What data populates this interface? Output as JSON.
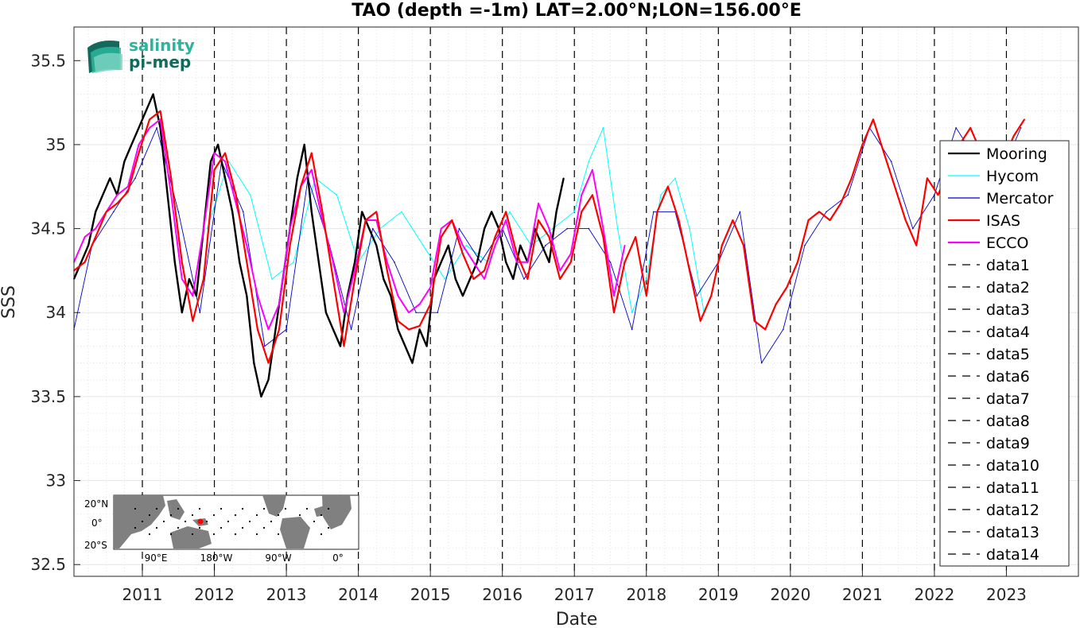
{
  "chart_data": {
    "type": "line",
    "title": "TAO (depth =-1m) LAT=2.00°N;LON=156.00°E",
    "xlabel": "Date",
    "ylabel": "SSS",
    "xlim": [
      2010.05,
      2024.0
    ],
    "ylim": [
      32.43,
      35.7
    ],
    "x_ticks": [
      2011,
      2012,
      2013,
      2014,
      2015,
      2016,
      2017,
      2018,
      2019,
      2020,
      2021,
      2022,
      2023
    ],
    "y_ticks": [
      32.5,
      33,
      33.5,
      34,
      34.5,
      35,
      35.5
    ],
    "y_tick_labels": [
      "32.5",
      "33",
      "33.5",
      "34",
      "34.5",
      "35",
      "35.5"
    ],
    "grid": true,
    "legend_position": "right",
    "vertical_year_lines": [
      2011,
      2012,
      2013,
      2014,
      2015,
      2016,
      2017,
      2018,
      2019,
      2020,
      2021,
      2022,
      2023
    ],
    "series": [
      {
        "name": "Mooring",
        "color": "#000000",
        "x": [
          2010.05,
          2010.15,
          2010.25,
          2010.35,
          2010.45,
          2010.55,
          2010.65,
          2010.75,
          2010.85,
          2010.95,
          2011.05,
          2011.15,
          2011.25,
          2011.35,
          2011.45,
          2011.55,
          2011.65,
          2011.75,
          2011.85,
          2011.95,
          2012.05,
          2012.15,
          2012.25,
          2012.35,
          2012.45,
          2012.55,
          2012.65,
          2012.75,
          2012.85,
          2012.95,
          2013.05,
          2013.15,
          2013.25,
          2013.35,
          2013.45,
          2013.55,
          2013.65,
          2013.75,
          2013.85,
          2013.95,
          2014.05,
          2014.15,
          2014.25,
          2014.35,
          2014.45,
          2014.55,
          2014.65,
          2014.75,
          2014.85,
          2014.95,
          2015.05,
          2015.15,
          2015.25,
          2015.35,
          2015.45,
          2015.55,
          2015.65,
          2015.75,
          2015.85,
          2015.95,
          2016.05,
          2016.15,
          2016.25,
          2016.35,
          2016.45,
          2016.55,
          2016.65,
          2016.75,
          2016.85
        ],
        "values": [
          34.2,
          34.3,
          34.4,
          34.6,
          34.7,
          34.8,
          34.7,
          34.9,
          35.0,
          35.1,
          35.2,
          35.3,
          35.1,
          34.7,
          34.3,
          34.0,
          34.2,
          34.1,
          34.5,
          34.9,
          35.0,
          34.8,
          34.6,
          34.3,
          34.1,
          33.7,
          33.5,
          33.6,
          33.9,
          34.2,
          34.5,
          34.8,
          35.0,
          34.6,
          34.3,
          34.0,
          33.9,
          33.8,
          34.1,
          34.3,
          34.6,
          34.5,
          34.4,
          34.2,
          34.1,
          33.9,
          33.8,
          33.7,
          33.9,
          33.8,
          34.2,
          34.3,
          34.4,
          34.2,
          34.1,
          34.2,
          34.3,
          34.5,
          34.6,
          34.5,
          34.3,
          34.2,
          34.4,
          34.3,
          34.5,
          34.4,
          34.3,
          34.6,
          34.8
        ]
      },
      {
        "name": "Hycom",
        "color": "#00ffff",
        "x": [
          2011.9,
          2012.2,
          2012.5,
          2012.8,
          2013.1,
          2013.4,
          2013.7,
          2014.0,
          2014.3,
          2014.6,
          2014.9,
          2015.2,
          2015.5,
          2015.8,
          2016.1,
          2016.4,
          2016.7,
          2017.0,
          2017.2,
          2017.4,
          2017.6,
          2017.8,
          2018.0,
          2018.2,
          2018.4,
          2018.6,
          2018.8
        ],
        "values": [
          34.5,
          34.9,
          34.7,
          34.2,
          34.3,
          34.8,
          34.7,
          34.3,
          34.5,
          34.6,
          34.4,
          34.2,
          34.4,
          34.3,
          34.6,
          34.4,
          34.5,
          34.6,
          34.9,
          35.1,
          34.5,
          34.0,
          34.2,
          34.7,
          34.8,
          34.5,
          34.0
        ]
      },
      {
        "name": "Mercator",
        "color": "#0000cd",
        "x": [
          2010.05,
          2010.3,
          2010.6,
          2010.9,
          2011.2,
          2011.5,
          2011.8,
          2012.1,
          2012.4,
          2012.7,
          2013.0,
          2013.3,
          2013.6,
          2013.9,
          2014.2,
          2014.5,
          2014.8,
          2015.1,
          2015.4,
          2015.7,
          2016.0,
          2016.3,
          2016.6,
          2016.9,
          2017.2,
          2017.5,
          2017.8,
          2018.1,
          2018.4,
          2018.7,
          2019.0,
          2019.3,
          2019.6,
          2019.9,
          2020.2,
          2020.5,
          2020.8,
          2021.1,
          2021.4,
          2021.7,
          2022.0,
          2022.3,
          2022.6,
          2022.9,
          2023.2
        ],
        "values": [
          33.9,
          34.4,
          34.6,
          34.8,
          35.1,
          34.6,
          34.0,
          34.9,
          34.6,
          33.8,
          33.9,
          34.8,
          34.4,
          33.9,
          34.5,
          34.3,
          34.0,
          34.0,
          34.5,
          34.3,
          34.5,
          34.2,
          34.4,
          34.5,
          34.5,
          34.3,
          33.9,
          34.6,
          34.6,
          34.1,
          34.3,
          34.6,
          33.7,
          33.9,
          34.4,
          34.6,
          34.7,
          35.1,
          34.9,
          34.5,
          34.7,
          35.1,
          34.9,
          34.8,
          35.1
        ]
      },
      {
        "name": "ISAS",
        "color": "#ff0000",
        "x": [
          2010.05,
          2010.2,
          2010.35,
          2010.5,
          2010.65,
          2010.8,
          2010.95,
          2011.1,
          2011.25,
          2011.4,
          2011.55,
          2011.7,
          2011.85,
          2012.0,
          2012.15,
          2012.3,
          2012.45,
          2012.6,
          2012.75,
          2012.9,
          2013.05,
          2013.2,
          2013.35,
          2013.5,
          2013.65,
          2013.8,
          2013.95,
          2014.1,
          2014.25,
          2014.4,
          2014.55,
          2014.7,
          2014.85,
          2015.0,
          2015.15,
          2015.3,
          2015.45,
          2015.6,
          2015.75,
          2015.9,
          2016.05,
          2016.2,
          2016.35,
          2016.5,
          2016.65,
          2016.8,
          2016.95,
          2017.1,
          2017.25,
          2017.4,
          2017.55,
          2017.7,
          2017.85,
          2018.0,
          2018.15,
          2018.3,
          2018.45,
          2018.6,
          2018.75,
          2018.9,
          2019.05,
          2019.2,
          2019.35,
          2019.5,
          2019.65,
          2019.8,
          2019.95,
          2020.1,
          2020.25,
          2020.4,
          2020.55,
          2020.7,
          2020.85,
          2021.0,
          2021.15,
          2021.3,
          2021.45,
          2021.6,
          2021.75,
          2021.9,
          2022.05,
          2022.2,
          2022.35,
          2022.5,
          2022.65,
          2022.8,
          2022.95,
          2023.1,
          2023.25
        ],
        "values": [
          34.25,
          34.3,
          34.45,
          34.6,
          34.65,
          34.72,
          34.95,
          35.15,
          35.2,
          34.8,
          34.3,
          33.95,
          34.2,
          34.85,
          34.95,
          34.7,
          34.3,
          33.9,
          33.7,
          33.9,
          34.4,
          34.75,
          34.95,
          34.6,
          34.2,
          33.8,
          34.2,
          34.55,
          34.6,
          34.25,
          33.95,
          33.9,
          33.92,
          34.05,
          34.45,
          34.55,
          34.35,
          34.2,
          34.25,
          34.45,
          34.6,
          34.35,
          34.2,
          34.55,
          34.45,
          34.2,
          34.3,
          34.6,
          34.7,
          34.45,
          34.0,
          34.3,
          34.45,
          34.1,
          34.6,
          34.75,
          34.55,
          34.25,
          33.95,
          34.1,
          34.4,
          34.55,
          34.4,
          33.95,
          33.9,
          34.05,
          34.15,
          34.3,
          34.55,
          34.6,
          34.55,
          34.65,
          34.8,
          35.0,
          35.15,
          34.95,
          34.75,
          34.55,
          34.4,
          34.8,
          34.7,
          34.85,
          35.0,
          35.1,
          34.95,
          34.85,
          34.9,
          35.05,
          35.15
        ]
      },
      {
        "name": "ECCO",
        "color": "#ff00ff",
        "x": [
          2010.05,
          2010.2,
          2010.35,
          2010.5,
          2010.65,
          2010.8,
          2010.95,
          2011.1,
          2011.25,
          2011.4,
          2011.55,
          2011.7,
          2011.85,
          2012.0,
          2012.15,
          2012.3,
          2012.45,
          2012.6,
          2012.75,
          2012.9,
          2013.05,
          2013.2,
          2013.35,
          2013.5,
          2013.65,
          2013.8,
          2013.95,
          2014.1,
          2014.25,
          2014.4,
          2014.55,
          2014.7,
          2014.85,
          2015.0,
          2015.15,
          2015.3,
          2015.45,
          2015.6,
          2015.75,
          2015.9,
          2016.05,
          2016.2,
          2016.35,
          2016.5,
          2016.65,
          2016.8,
          2016.95,
          2017.1,
          2017.25,
          2017.4,
          2017.55,
          2017.7
        ],
        "values": [
          34.3,
          34.45,
          34.5,
          34.6,
          34.7,
          34.75,
          35.0,
          35.1,
          35.15,
          34.7,
          34.2,
          34.1,
          34.5,
          34.95,
          34.9,
          34.65,
          34.4,
          34.1,
          33.9,
          34.05,
          34.5,
          34.75,
          34.85,
          34.55,
          34.3,
          34.0,
          34.25,
          34.55,
          34.55,
          34.3,
          34.1,
          34.0,
          34.05,
          34.15,
          34.5,
          34.55,
          34.4,
          34.3,
          34.2,
          34.4,
          34.55,
          34.3,
          34.3,
          34.65,
          34.5,
          34.25,
          34.35,
          34.7,
          34.85,
          34.5,
          34.1,
          34.4
        ]
      }
    ],
    "legend_entries": [
      "Mooring",
      "Hycom",
      "Mercator",
      "ISAS",
      "ECCO",
      "data1",
      "data2",
      "data3",
      "data4",
      "data5",
      "data6",
      "data7",
      "data8",
      "data9",
      "data10",
      "data11",
      "data12",
      "data13",
      "data14"
    ]
  },
  "logo": {
    "line1": "salinity",
    "line2": "pi-mep",
    "color_dark": "#136a5c",
    "color_light": "#2bb59a"
  },
  "inset_map": {
    "lat_labels": [
      "20°N",
      "0°",
      "20°S"
    ],
    "lon_labels": [
      "90°E",
      "180°W",
      "90°W",
      "0°"
    ],
    "land_color": "#808080",
    "marker_color": "#ff0000"
  }
}
